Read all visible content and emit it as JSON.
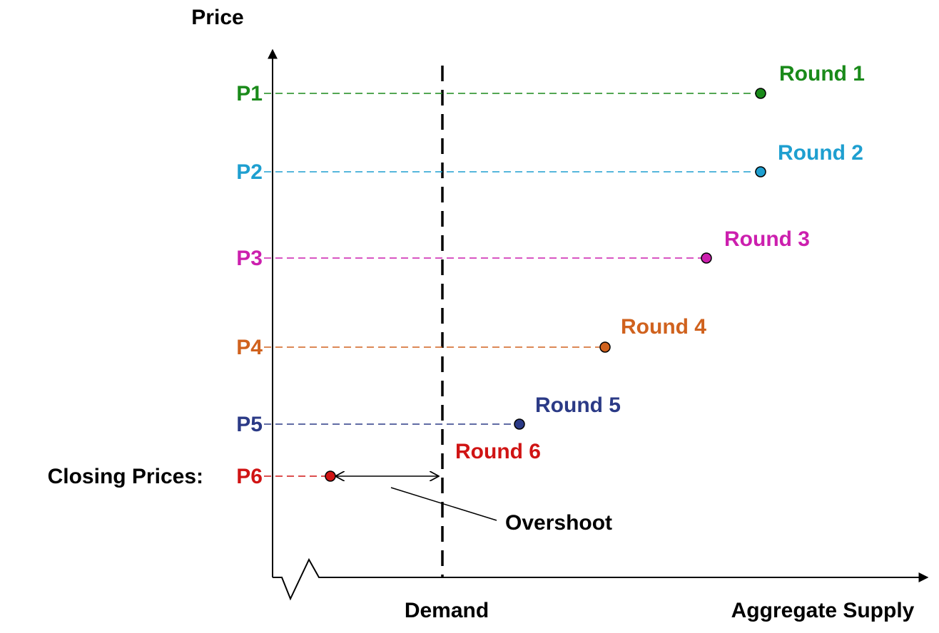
{
  "axis": {
    "y_label": "Price",
    "x_demand": "Demand",
    "x_supply": "Aggregate Supply"
  },
  "closing_label": "Closing Prices:",
  "annotation": "Overshoot",
  "rounds": [
    {
      "price": "P1",
      "label": "Round 1"
    },
    {
      "price": "P2",
      "label": "Round 2"
    },
    {
      "price": "P3",
      "label": "Round 3"
    },
    {
      "price": "P4",
      "label": "Round 4"
    },
    {
      "price": "P5",
      "label": "Round 5"
    },
    {
      "price": "P6",
      "label": "Round 6"
    }
  ]
}
